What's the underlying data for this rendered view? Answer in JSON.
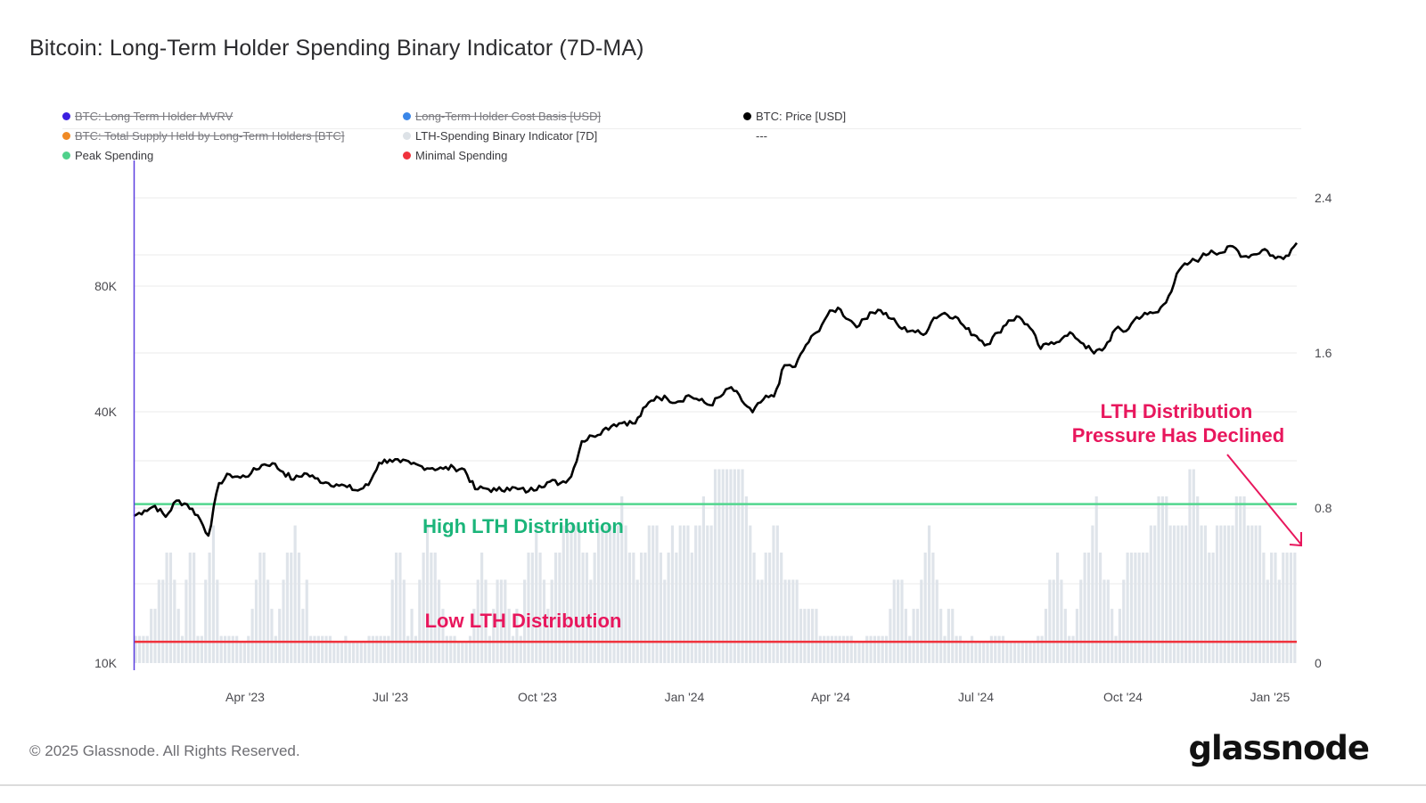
{
  "title": "Bitcoin: Long-Term Holder Spending Binary Indicator (7D-MA)",
  "legend": [
    {
      "label": "BTC: Long Term Holder MVRV",
      "color": "#3b1fe0",
      "disabled": true
    },
    {
      "label": "Long-Term Holder Cost Basis [USD]",
      "color": "#3a86e8",
      "disabled": true
    },
    {
      "label": "BTC: Price [USD]",
      "color": "#000000",
      "disabled": false
    },
    {
      "label": "BTC: Total Supply Held by Long-Term Holders [BTC]",
      "color": "#f08a24",
      "disabled": true
    },
    {
      "label": "LTH-Spending Binary Indicator [7D]",
      "color": "#dde2e7",
      "disabled": false
    },
    {
      "label": "---",
      "color": null,
      "disabled": false
    },
    {
      "label": "Peak Spending",
      "color": "#4fd18b",
      "disabled": false
    },
    {
      "label": "Minimal Spending",
      "color": "#f0323c",
      "disabled": false
    }
  ],
  "footer": {
    "copyright": "© 2025 Glassnode. All Rights Reserved.",
    "brand": "glassnode"
  },
  "colors": {
    "price": "#000000",
    "bars": "#dfe4ea",
    "peak": "#52d68e",
    "minimal": "#f0323c",
    "annotation_high": "#1bb57a",
    "annotation_low": "#e8175d",
    "cursor": "#5b3fe0"
  },
  "chart_data": {
    "type": "line",
    "title": "Bitcoin: Long-Term Holder Spending Binary Indicator (7D-MA)",
    "xlabel": "",
    "x_ticks": [
      "Apr '23",
      "Jul '23",
      "Oct '23",
      "Jan '24",
      "Apr '24",
      "Jul '24",
      "Oct '24",
      "Jan '25"
    ],
    "x_range": [
      "2023-02-15",
      "2025-01-12"
    ],
    "left_axis": {
      "label": "BTC: Price [USD]",
      "scale": "log",
      "ticks": [
        "10K",
        "40K",
        "80K"
      ],
      "tick_values": [
        10000,
        40000,
        80000
      ],
      "range": [
        10000,
        120000
      ]
    },
    "right_axis": {
      "label": "LTH-Spending Binary Indicator [7D]",
      "ticks": [
        "0",
        "0.8",
        "1.6",
        "2.4"
      ],
      "tick_values": [
        0,
        0.8,
        1.6,
        2.4
      ],
      "range": [
        0,
        2.4
      ]
    },
    "grid": true,
    "legend_position": "top",
    "series": [
      {
        "name": "BTC: Price [USD]",
        "axis": "left",
        "type": "line",
        "values": [
          22500,
          23200,
          23800,
          22400,
          24500,
          24000,
          22600,
          20200,
          27000,
          28300,
          27800,
          28500,
          29800,
          30100,
          28700,
          27500,
          28500,
          27700,
          27100,
          26800,
          26400,
          25900,
          26700,
          30200,
          30700,
          30300,
          30000,
          29600,
          29300,
          29200,
          29400,
          29100,
          26100,
          26200,
          25900,
          26300,
          26100,
          25800,
          26600,
          27200,
          27000,
          28000,
          34000,
          35000,
          36200,
          37300,
          37800,
          37500,
          41200,
          43500,
          43000,
          42300,
          43800,
          42600,
          41500,
          43500,
          45800,
          42500,
          39900,
          42800,
          43500,
          51700,
          51300,
          57800,
          62000,
          68000,
          71000,
          66500,
          64300,
          69200,
          70000,
          66800,
          63200,
          62600,
          61100,
          67200,
          69000,
          67600,
          63200,
          60700,
          58000,
          61900,
          66200,
          67500,
          63500,
          56600,
          58700,
          59900,
          61400,
          58200,
          55200,
          57000,
          63100,
          62400,
          67400,
          68500,
          69300,
          75800,
          87500,
          91200,
          93500,
          97300,
          96200,
          99600,
          94200,
          95300,
          98100,
          93200,
          94600,
          101500
        ],
        "values_note": "approximate, read from log-scale axis"
      },
      {
        "name": "LTH-Spending Binary Indicator [7D]",
        "axis": "right",
        "type": "bar",
        "values_note": "7D moving average of binary indicator, approximate",
        "values": [
          0.14,
          0.14,
          0.14,
          0.14,
          0.28,
          0.28,
          0.43,
          0.43,
          0.57,
          0.57,
          0.43,
          0.28,
          0.14,
          0.43,
          0.57,
          0.57,
          0.14,
          0.14,
          0.43,
          0.57,
          0.71,
          0.43,
          0.14,
          0.14,
          0.14,
          0.14,
          0.14,
          0.0,
          0.0,
          0.14,
          0.28,
          0.43,
          0.57,
          0.57,
          0.43,
          0.28,
          0.14,
          0.28,
          0.43,
          0.57,
          0.57,
          0.71,
          0.57,
          0.28,
          0.43,
          0.14,
          0.14,
          0.14,
          0.14,
          0.14,
          0.14,
          0.0,
          0.0,
          0.0,
          0.14,
          0.0,
          0.0,
          0.0,
          0.0,
          0.0,
          0.14,
          0.14,
          0.14,
          0.14,
          0.14,
          0.14,
          0.43,
          0.57,
          0.57,
          0.43,
          0.14,
          0.28,
          0.14,
          0.43,
          0.57,
          0.71,
          0.57,
          0.57,
          0.43,
          0.28,
          0.14,
          0.14,
          0.14,
          0.0,
          0.0,
          0.0,
          0.14,
          0.28,
          0.43,
          0.57,
          0.43,
          0.14,
          0.28,
          0.43,
          0.43,
          0.43,
          0.28,
          0.14,
          0.28,
          0.14,
          0.43,
          0.57,
          0.57,
          0.71,
          0.57,
          0.43,
          0.28,
          0.43,
          0.57,
          0.57,
          0.71,
          0.71,
          0.71,
          0.71,
          0.71,
          0.57,
          0.57,
          0.43,
          0.57,
          0.71,
          0.71,
          0.71,
          0.71,
          0.71,
          0.71,
          0.86,
          0.71,
          0.57,
          0.57,
          0.43,
          0.57,
          0.57,
          0.71,
          0.71,
          0.71,
          0.57,
          0.43,
          0.57,
          0.71,
          0.57,
          0.71,
          0.71,
          0.71,
          0.57,
          0.71,
          0.71,
          0.86,
          0.71,
          0.71,
          1.0,
          1.0,
          1.0,
          1.0,
          1.0,
          1.0,
          1.0,
          1.0,
          0.86,
          0.71,
          0.57,
          0.43,
          0.43,
          0.57,
          0.57,
          0.71,
          0.71,
          0.57,
          0.43,
          0.43,
          0.43,
          0.43,
          0.28,
          0.28,
          0.28,
          0.28,
          0.28,
          0.14,
          0.14,
          0.14,
          0.14,
          0.14,
          0.14,
          0.14,
          0.14,
          0.14,
          0.0,
          0.0,
          0.0,
          0.14,
          0.14,
          0.14,
          0.14,
          0.14,
          0.14,
          0.28,
          0.43,
          0.43,
          0.43,
          0.28,
          0.14,
          0.28,
          0.28,
          0.43,
          0.57,
          0.71,
          0.57,
          0.43,
          0.28,
          0.14,
          0.28,
          0.28,
          0.14,
          0.14,
          0.0,
          0.0,
          0.14,
          0.0,
          0.0,
          0.0,
          0.0,
          0.14,
          0.14,
          0.14,
          0.14,
          0.0,
          0.0,
          0.0,
          0.0,
          0.0,
          0.0,
          0.0,
          0.0,
          0.14,
          0.14,
          0.28,
          0.43,
          0.43,
          0.57,
          0.43,
          0.28,
          0.14,
          0.14,
          0.28,
          0.43,
          0.57,
          0.57,
          0.71,
          0.86,
          0.57,
          0.43,
          0.43,
          0.28,
          0.14,
          0.28,
          0.43,
          0.57,
          0.57,
          0.57,
          0.57,
          0.57,
          0.57,
          0.71,
          0.71,
          0.86,
          0.86,
          0.86,
          0.71,
          0.71,
          0.71,
          0.71,
          0.71,
          1.0,
          1.0,
          0.86,
          0.71,
          0.71,
          0.57,
          0.57,
          0.71,
          0.71,
          0.71,
          0.71,
          0.71,
          0.86,
          0.86,
          0.86,
          0.71,
          0.71,
          0.71,
          0.71,
          0.57,
          0.43,
          0.57,
          0.57,
          0.43,
          0.57,
          0.57,
          0.57,
          0.57
        ]
      },
      {
        "name": "Peak Spending",
        "axis": "right",
        "type": "hline",
        "value": 0.82
      },
      {
        "name": "Minimal Spending",
        "axis": "right",
        "type": "hline",
        "value": 0.11
      }
    ],
    "annotations": [
      {
        "text": "High LTH Distribution",
        "color": "#1bb57a"
      },
      {
        "text": "Low LTH Distribution",
        "color": "#e8175d"
      },
      {
        "text_lines": [
          "LTH Distribution",
          "Pressure Has Declined"
        ],
        "color": "#e8175d",
        "arrow": true
      }
    ]
  }
}
